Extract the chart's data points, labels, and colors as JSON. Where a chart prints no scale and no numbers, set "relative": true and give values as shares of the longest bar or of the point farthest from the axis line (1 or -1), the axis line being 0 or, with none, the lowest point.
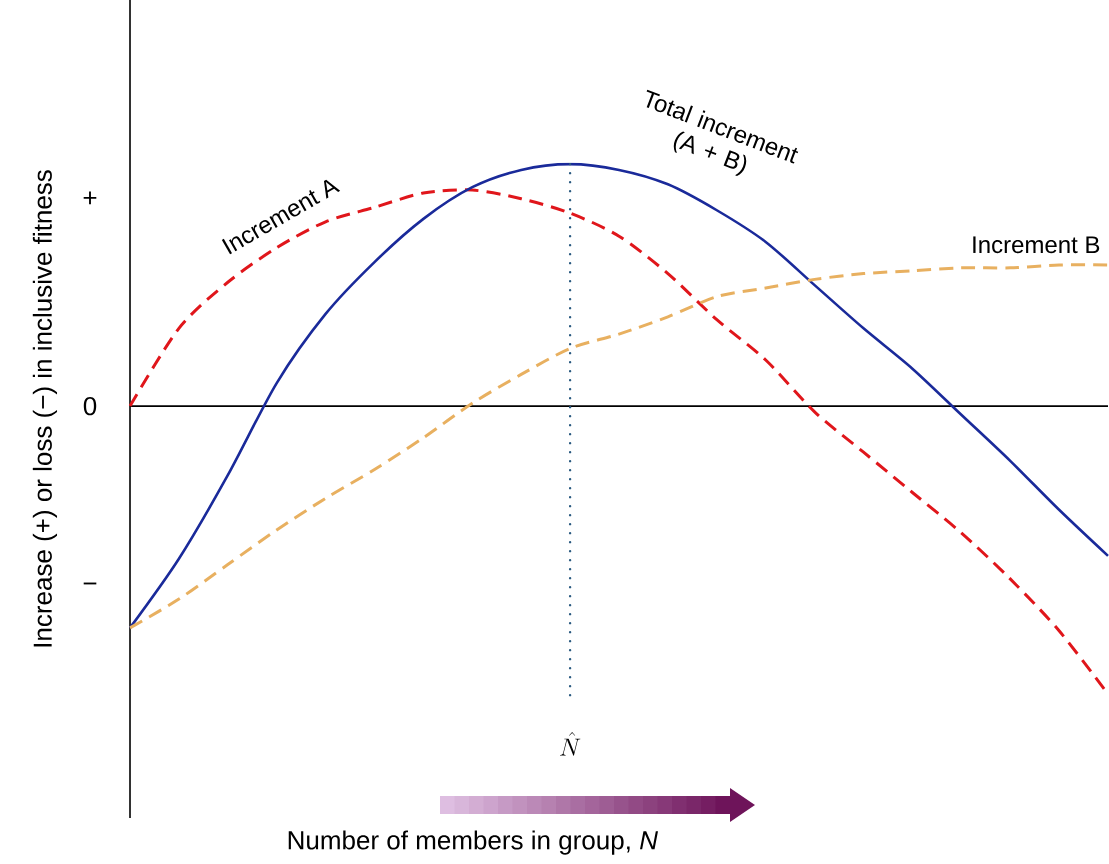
{
  "chart_data": {
    "type": "line",
    "relative": true,
    "ylabel": "Increase (+) or loss (−) in inclusive fitness",
    "categories": [
      null,
      null,
      null,
      null,
      null,
      null,
      null,
      null,
      null,
      null,
      null,
      null,
      null,
      null,
      null,
      null,
      null,
      null,
      null,
      null,
      null
    ],
    "annotations": [
      "+",
      "0",
      "−",
      "\\hat{N}",
      "Number of members in group, *N*"
    ],
    "series": [
      {
        "name": "Increment A",
        "color": "#e0161b",
        "line_style": "dashed",
        "values": [
          0,
          0.27,
          0.43,
          0.55,
          0.64,
          0.69,
          0.74,
          0.75,
          0.72,
          0.67,
          0.59,
          0.46,
          0.3,
          0.16,
          -0.02,
          -0.16,
          -0.3,
          -0.44,
          -0.6,
          -0.78,
          -1
        ]
      },
      {
        "name": "Total increment (A + B)",
        "color": "#1a2a9a",
        "line_style": "solid",
        "values": [
          -0.77,
          -0.53,
          -0.24,
          0.08,
          0.32,
          0.5,
          0.65,
          0.76,
          0.82,
          0.84,
          0.82,
          0.77,
          0.68,
          0.57,
          0.42,
          0.27,
          0.13,
          -0.03,
          -0.19,
          -0.36,
          -0.52
        ]
      },
      {
        "name": "Increment B",
        "color": "#e8b060",
        "line_style": "dashed",
        "values": [
          -0.77,
          -0.67,
          -0.55,
          -0.43,
          -0.32,
          -0.22,
          -0.11,
          0.01,
          0.11,
          0.2,
          0.25,
          0.31,
          0.38,
          0.41,
          0.44,
          0.46,
          0.47,
          0.48,
          0.48,
          0.49,
          0.49
        ]
      }
    ],
    "marker": "none"
  }
}
